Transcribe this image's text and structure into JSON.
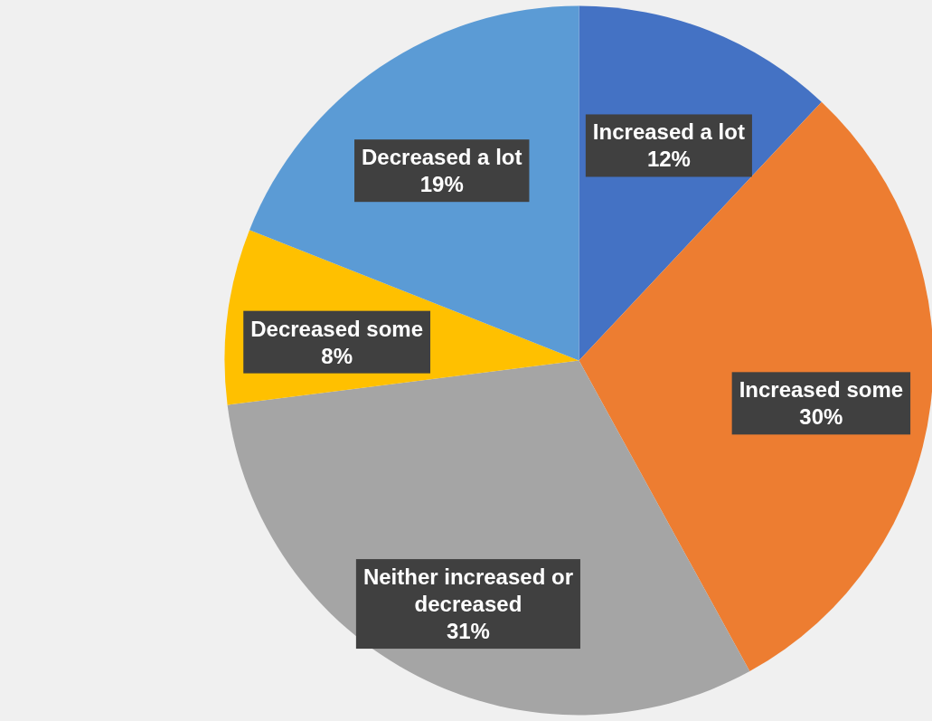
{
  "chart_data": {
    "type": "pie",
    "categories": [
      "Increased a lot",
      "Increased some",
      "Neither increased or decreased",
      "Decreased some",
      "Decreased a lot"
    ],
    "values": [
      12,
      30,
      31,
      8,
      19
    ],
    "value_labels": [
      "12%",
      "30%",
      "31%",
      "8%",
      "19%"
    ],
    "colors": [
      "#4472c4",
      "#ed7d31",
      "#a5a5a5",
      "#ffc000",
      "#5b9bd5"
    ],
    "legend": false
  }
}
